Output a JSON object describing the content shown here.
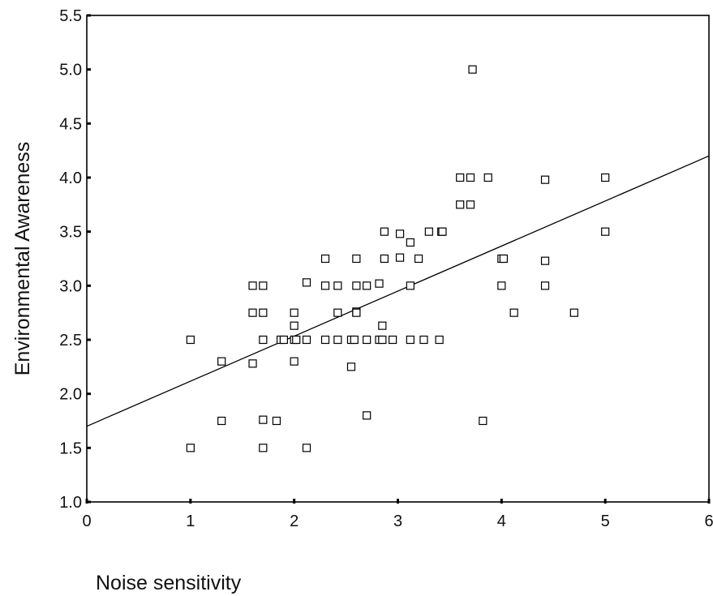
{
  "chart_data": {
    "type": "scatter",
    "xlabel": "Noise sensitivity",
    "ylabel": "Environmental Awareness",
    "xlim": [
      0,
      6
    ],
    "ylim": [
      1.0,
      5.5
    ],
    "x_ticks": [
      "0",
      "1",
      "2",
      "3",
      "4",
      "5",
      "6"
    ],
    "y_ticks": [
      "1.0",
      "1.5",
      "2.0",
      "2.5",
      "3.0",
      "3.5",
      "4.0",
      "4.5",
      "5.0",
      "5.5"
    ],
    "grid": false,
    "legend": "none",
    "fit_line": {
      "x": [
        0,
        6
      ],
      "y": [
        1.7,
        4.2
      ]
    },
    "points": [
      {
        "x": 1.0,
        "y": 2.5
      },
      {
        "x": 1.0,
        "y": 1.5
      },
      {
        "x": 1.3,
        "y": 2.3
      },
      {
        "x": 1.3,
        "y": 1.75
      },
      {
        "x": 1.6,
        "y": 3.0
      },
      {
        "x": 1.7,
        "y": 3.0
      },
      {
        "x": 1.6,
        "y": 2.75
      },
      {
        "x": 1.7,
        "y": 2.75
      },
      {
        "x": 1.6,
        "y": 2.28
      },
      {
        "x": 1.7,
        "y": 2.5
      },
      {
        "x": 1.7,
        "y": 1.76
      },
      {
        "x": 1.83,
        "y": 1.75
      },
      {
        "x": 1.7,
        "y": 1.5
      },
      {
        "x": 1.87,
        "y": 2.5
      },
      {
        "x": 1.9,
        "y": 2.5
      },
      {
        "x": 2.0,
        "y": 2.75
      },
      {
        "x": 2.0,
        "y": 2.63
      },
      {
        "x": 2.0,
        "y": 2.5
      },
      {
        "x": 2.02,
        "y": 2.5
      },
      {
        "x": 2.0,
        "y": 2.3
      },
      {
        "x": 2.12,
        "y": 3.03
      },
      {
        "x": 2.12,
        "y": 2.5
      },
      {
        "x": 2.12,
        "y": 1.5
      },
      {
        "x": 2.3,
        "y": 3.25
      },
      {
        "x": 2.3,
        "y": 3.0
      },
      {
        "x": 2.42,
        "y": 3.0
      },
      {
        "x": 2.42,
        "y": 2.75
      },
      {
        "x": 2.3,
        "y": 2.5
      },
      {
        "x": 2.42,
        "y": 2.5
      },
      {
        "x": 2.55,
        "y": 2.5
      },
      {
        "x": 2.58,
        "y": 2.5
      },
      {
        "x": 2.55,
        "y": 2.25
      },
      {
        "x": 2.6,
        "y": 3.25
      },
      {
        "x": 2.6,
        "y": 3.0
      },
      {
        "x": 2.7,
        "y": 3.0
      },
      {
        "x": 2.6,
        "y": 2.76
      },
      {
        "x": 2.6,
        "y": 2.75
      },
      {
        "x": 2.7,
        "y": 2.5
      },
      {
        "x": 2.82,
        "y": 2.5
      },
      {
        "x": 2.85,
        "y": 2.5
      },
      {
        "x": 2.7,
        "y": 1.8
      },
      {
        "x": 2.82,
        "y": 3.02
      },
      {
        "x": 2.85,
        "y": 2.63
      },
      {
        "x": 2.87,
        "y": 3.5
      },
      {
        "x": 2.87,
        "y": 3.25
      },
      {
        "x": 2.95,
        "y": 2.5
      },
      {
        "x": 3.02,
        "y": 3.48
      },
      {
        "x": 3.02,
        "y": 3.26
      },
      {
        "x": 3.12,
        "y": 3.4
      },
      {
        "x": 3.12,
        "y": 3.0
      },
      {
        "x": 3.12,
        "y": 2.5
      },
      {
        "x": 3.2,
        "y": 3.25
      },
      {
        "x": 3.25,
        "y": 2.5
      },
      {
        "x": 3.3,
        "y": 3.5
      },
      {
        "x": 3.42,
        "y": 3.5
      },
      {
        "x": 3.43,
        "y": 3.5
      },
      {
        "x": 3.4,
        "y": 2.5
      },
      {
        "x": 3.6,
        "y": 4.0
      },
      {
        "x": 3.6,
        "y": 3.75
      },
      {
        "x": 3.7,
        "y": 4.0
      },
      {
        "x": 3.7,
        "y": 3.75
      },
      {
        "x": 3.72,
        "y": 5.0
      },
      {
        "x": 3.82,
        "y": 1.75
      },
      {
        "x": 3.87,
        "y": 4.0
      },
      {
        "x": 4.0,
        "y": 3.25
      },
      {
        "x": 4.02,
        "y": 3.25
      },
      {
        "x": 4.0,
        "y": 3.0
      },
      {
        "x": 4.12,
        "y": 2.75
      },
      {
        "x": 4.42,
        "y": 3.98
      },
      {
        "x": 4.42,
        "y": 3.23
      },
      {
        "x": 4.42,
        "y": 3.0
      },
      {
        "x": 4.7,
        "y": 2.75
      },
      {
        "x": 5.0,
        "y": 4.0
      },
      {
        "x": 5.0,
        "y": 3.5
      }
    ]
  }
}
